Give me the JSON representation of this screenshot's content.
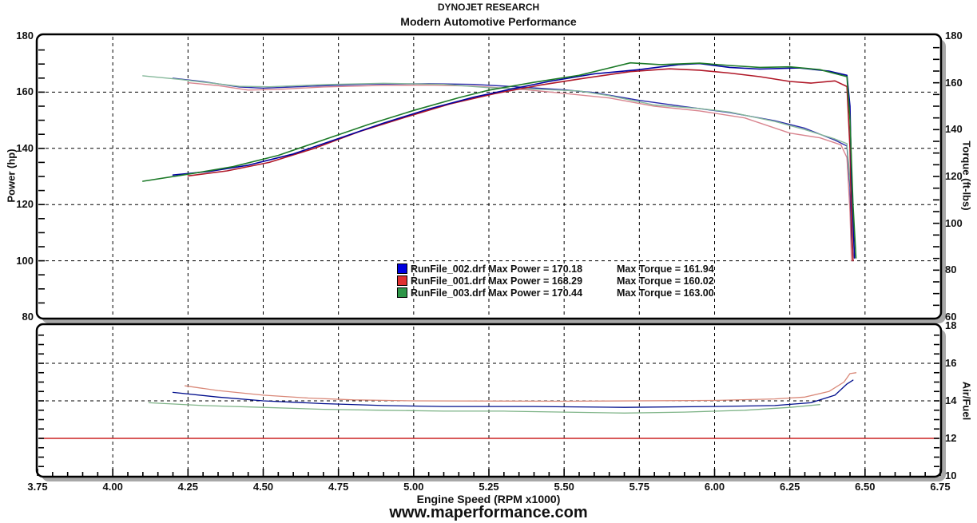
{
  "header": {
    "line1": "DYNOJET RESEARCH",
    "line2": "Modern Automotive Performance"
  },
  "footer": {
    "website": "www.maperformance.com"
  },
  "legend": {
    "rows": [
      {
        "swatch_color": "#0000E0",
        "label_left": "RunFile_002.drf Max Power = 170.18",
        "label_right": "Max Torque = 161.94"
      },
      {
        "swatch_color": "#E03030",
        "label_left": "RunFile_001.drf Max Power = 168.29",
        "label_right": "Max Torque = 160.02"
      },
      {
        "swatch_color": "#2E9648",
        "label_left": "RunFile_003.drf Max Power = 170.44",
        "label_right": "Max Torque = 163.00"
      }
    ]
  },
  "chart_data": {
    "type": "line",
    "title": "Modern Automotive Performance",
    "subtitle": "DYNOJET RESEARCH",
    "xlabel": "Engine Speed (RPM x1000)",
    "x_range": [
      3.75,
      6.75
    ],
    "x_tick_labels": [
      "3.75",
      "4.00",
      "4.25",
      "4.50",
      "4.75",
      "5.00",
      "5.25",
      "5.50",
      "5.75",
      "6.00",
      "6.25",
      "6.50",
      "6.75"
    ],
    "x_minor_step": 0.05,
    "grid": "dashed",
    "runs": [
      {
        "file": "RunFile_002.drf",
        "max_power": 170.18,
        "max_torque": 161.94,
        "color": "#0000E0"
      },
      {
        "file": "RunFile_001.drf",
        "max_power": 168.29,
        "max_torque": 160.02,
        "color": "#E03030"
      },
      {
        "file": "RunFile_003.drf",
        "max_power": 170.44,
        "max_torque": 163.0,
        "color": "#2E9648"
      }
    ],
    "panels": [
      {
        "id": "power_torque",
        "left_axis": {
          "label": "Power (hp)",
          "range": [
            80,
            180
          ],
          "tick_labels": [
            "180",
            "160",
            "140",
            "120",
            "100",
            "80"
          ],
          "minor_step": 5
        },
        "right_axis": {
          "label": "Torque (ft-lbs)",
          "range": [
            60,
            180
          ],
          "tick_labels": [
            "180",
            "160",
            "140",
            "120",
            "100",
            "80",
            "60"
          ],
          "minor_step": 5
        },
        "h_gridlines_left_axis": [
          160,
          140,
          120,
          100
        ],
        "series": [
          {
            "name": "torque-runfile-001",
            "run": "RunFile_001.drf",
            "axis": "right",
            "color": "#D9858F",
            "width": 1.4,
            "points": [
              [
                4.25,
                160.02
              ],
              [
                4.35,
                158.8
              ],
              [
                4.45,
                156.9
              ],
              [
                4.55,
                157.2
              ],
              [
                4.7,
                158.2
              ],
              [
                4.9,
                158.9
              ],
              [
                5.05,
                159.0
              ],
              [
                5.2,
                158.6
              ],
              [
                5.35,
                157.3
              ],
              [
                5.5,
                155.5
              ],
              [
                5.65,
                153.5
              ],
              [
                5.8,
                150.0
              ],
              [
                5.95,
                148.0
              ],
              [
                6.1,
                145.0
              ],
              [
                6.25,
                138.5
              ],
              [
                6.35,
                136.5
              ],
              [
                6.42,
                133.5
              ],
              [
                6.44,
                128.0
              ],
              [
                6.45,
                105.0
              ],
              [
                6.455,
                84.0
              ]
            ]
          },
          {
            "name": "torque-runfile-002",
            "run": "RunFile_002.drf",
            "axis": "right",
            "color": "#2A2AAA",
            "width": 1.4,
            "points": [
              [
                4.2,
                161.94
              ],
              [
                4.3,
                160.5
              ],
              [
                4.42,
                158.2
              ],
              [
                4.5,
                157.7
              ],
              [
                4.65,
                158.5
              ],
              [
                4.85,
                159.4
              ],
              [
                5.05,
                159.6
              ],
              [
                5.2,
                159.3
              ],
              [
                5.35,
                158.2
              ],
              [
                5.5,
                157.0
              ],
              [
                5.6,
                155.8
              ],
              [
                5.75,
                152.5
              ],
              [
                5.9,
                149.8
              ],
              [
                6.05,
                147.3
              ],
              [
                6.2,
                143.8
              ],
              [
                6.3,
                140.6
              ],
              [
                6.4,
                135.5
              ],
              [
                6.44,
                133.0
              ],
              [
                6.45,
                115.0
              ],
              [
                6.455,
                95.0
              ],
              [
                6.46,
                85.0
              ]
            ]
          },
          {
            "name": "torque-runfile-003",
            "run": "RunFile_003.drf",
            "axis": "right",
            "color": "#85B89A",
            "width": 1.4,
            "points": [
              [
                4.1,
                163.0
              ],
              [
                4.22,
                161.5
              ],
              [
                4.32,
                160.0
              ],
              [
                4.42,
                158.5
              ],
              [
                4.52,
                158.3
              ],
              [
                4.7,
                159.2
              ],
              [
                4.9,
                159.8
              ],
              [
                5.1,
                159.3
              ],
              [
                5.25,
                157.9
              ],
              [
                5.4,
                157.3
              ],
              [
                5.55,
                156.5
              ],
              [
                5.65,
                154.5
              ],
              [
                5.8,
                150.5
              ],
              [
                5.95,
                149.0
              ],
              [
                6.05,
                147.5
              ],
              [
                6.2,
                143.5
              ],
              [
                6.3,
                140.0
              ],
              [
                6.4,
                136.0
              ],
              [
                6.44,
                134.0
              ],
              [
                6.45,
                118.0
              ],
              [
                6.46,
                98.0
              ],
              [
                6.465,
                86.0
              ]
            ]
          },
          {
            "name": "power-runfile-001",
            "run": "RunFile_001.drf",
            "axis": "left",
            "color": "#B01828",
            "width": 1.6,
            "points": [
              [
                4.25,
                130.2
              ],
              [
                4.38,
                132.0
              ],
              [
                4.52,
                135.0
              ],
              [
                4.67,
                140.0
              ],
              [
                4.82,
                146.0
              ],
              [
                4.97,
                151.0
              ],
              [
                5.12,
                155.8
              ],
              [
                5.27,
                159.5
              ],
              [
                5.42,
                162.5
              ],
              [
                5.57,
                165.0
              ],
              [
                5.72,
                167.3
              ],
              [
                5.85,
                168.29
              ],
              [
                5.95,
                167.8
              ],
              [
                6.05,
                166.8
              ],
              [
                6.15,
                165.5
              ],
              [
                6.25,
                163.8
              ],
              [
                6.32,
                163.2
              ],
              [
                6.4,
                164.0
              ],
              [
                6.44,
                162.0
              ],
              [
                6.45,
                140.0
              ],
              [
                6.455,
                115.0
              ],
              [
                6.46,
                100.0
              ]
            ]
          },
          {
            "name": "power-runfile-002",
            "run": "RunFile_002.drf",
            "axis": "left",
            "color": "#0000A0",
            "width": 1.6,
            "points": [
              [
                4.2,
                130.5
              ],
              [
                4.32,
                131.8
              ],
              [
                4.45,
                134.0
              ],
              [
                4.6,
                138.0
              ],
              [
                4.75,
                143.5
              ],
              [
                4.9,
                149.0
              ],
              [
                5.05,
                154.0
              ],
              [
                5.2,
                158.2
              ],
              [
                5.32,
                161.0
              ],
              [
                5.45,
                163.8
              ],
              [
                5.6,
                166.5
              ],
              [
                5.75,
                168.0
              ],
              [
                5.88,
                169.8
              ],
              [
                5.95,
                170.18
              ],
              [
                6.05,
                168.8
              ],
              [
                6.15,
                168.2
              ],
              [
                6.28,
                168.6
              ],
              [
                6.38,
                167.5
              ],
              [
                6.44,
                166.0
              ],
              [
                6.45,
                155.0
              ],
              [
                6.455,
                130.0
              ],
              [
                6.465,
                101.0
              ]
            ]
          },
          {
            "name": "power-runfile-003",
            "run": "RunFile_003.drf",
            "axis": "left",
            "color": "#1C7A28",
            "width": 1.6,
            "points": [
              [
                4.1,
                128.3
              ],
              [
                4.25,
                130.8
              ],
              [
                4.4,
                133.5
              ],
              [
                4.55,
                137.5
              ],
              [
                4.7,
                143.0
              ],
              [
                4.85,
                148.5
              ],
              [
                5.0,
                153.5
              ],
              [
                5.15,
                158.0
              ],
              [
                5.25,
                160.7
              ],
              [
                5.4,
                163.5
              ],
              [
                5.55,
                166.0
              ],
              [
                5.72,
                170.44
              ],
              [
                5.82,
                169.8
              ],
              [
                5.95,
                170.3
              ],
              [
                6.05,
                169.5
              ],
              [
                6.15,
                168.8
              ],
              [
                6.25,
                169.0
              ],
              [
                6.35,
                168.0
              ],
              [
                6.44,
                165.5
              ],
              [
                6.45,
                150.0
              ],
              [
                6.46,
                120.0
              ],
              [
                6.47,
                101.0
              ]
            ]
          }
        ]
      },
      {
        "id": "air_fuel",
        "right_axis": {
          "label": "Air/Fuel",
          "range": [
            10,
            18
          ],
          "tick_labels": [
            "18",
            "16",
            "14",
            "12",
            "10"
          ],
          "minor_step": 0.5
        },
        "h_gridlines": [
          16,
          14,
          12
        ],
        "reference_line": {
          "value": 12,
          "color": "#CC2222"
        },
        "series": [
          {
            "name": "airfuel-runfile-001",
            "run": "RunFile_001.drf",
            "color": "#D98878",
            "width": 1.3,
            "points": [
              [
                4.24,
                14.8
              ],
              [
                4.35,
                14.55
              ],
              [
                4.5,
                14.3
              ],
              [
                4.65,
                14.15
              ],
              [
                4.8,
                14.05
              ],
              [
                5.0,
                14.0
              ],
              [
                5.5,
                13.98
              ],
              [
                6.0,
                14.02
              ],
              [
                6.2,
                14.1
              ],
              [
                6.3,
                14.2
              ],
              [
                6.38,
                14.5
              ],
              [
                6.43,
                15.0
              ],
              [
                6.45,
                15.45
              ],
              [
                6.47,
                15.5
              ]
            ]
          },
          {
            "name": "airfuel-runfile-002",
            "run": "RunFile_002.drf",
            "color": "#000E8C",
            "width": 1.3,
            "points": [
              [
                4.2,
                14.45
              ],
              [
                4.35,
                14.2
              ],
              [
                4.5,
                14.0
              ],
              [
                4.7,
                13.85
              ],
              [
                4.9,
                13.75
              ],
              [
                5.1,
                13.7
              ],
              [
                5.4,
                13.7
              ],
              [
                5.7,
                13.65
              ],
              [
                6.0,
                13.7
              ],
              [
                6.2,
                13.75
              ],
              [
                6.32,
                13.9
              ],
              [
                6.4,
                14.3
              ],
              [
                6.44,
                14.9
              ],
              [
                6.46,
                15.1
              ]
            ]
          },
          {
            "name": "airfuel-runfile-003",
            "run": "RunFile_003.drf",
            "color": "#7FB488",
            "width": 1.3,
            "points": [
              [
                4.12,
                13.9
              ],
              [
                4.3,
                13.75
              ],
              [
                4.5,
                13.65
              ],
              [
                4.7,
                13.55
              ],
              [
                4.9,
                13.5
              ],
              [
                5.1,
                13.45
              ],
              [
                5.3,
                13.45
              ],
              [
                5.5,
                13.4
              ],
              [
                5.7,
                13.35
              ],
              [
                5.9,
                13.4
              ],
              [
                6.1,
                13.5
              ],
              [
                6.25,
                13.65
              ],
              [
                6.35,
                13.8
              ]
            ]
          }
        ]
      }
    ]
  }
}
